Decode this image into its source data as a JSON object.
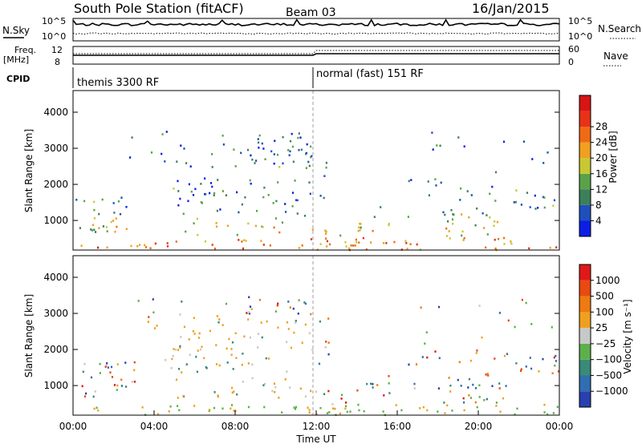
{
  "header": {
    "station": "South Pole Station (fitACF)",
    "beam": "Beam 03",
    "date": "16/Jan/2015"
  },
  "top_panels": {
    "nsky_label": "N.Sky",
    "nsearch_label": "N.Search",
    "power_ticks": [
      "10^5",
      "10^0"
    ],
    "freq_label_1": "Freq.",
    "freq_label_2": "[MHz]",
    "freq_ticks": [
      "12",
      "8"
    ],
    "nave_label": "Nave",
    "nave_ticks": [
      "60",
      "0"
    ],
    "cpid_label": "CPID",
    "cpid_modes": [
      {
        "label": "themis 3300 RF",
        "start_hour": 0
      },
      {
        "label": "normal (fast) 151 RF",
        "start_hour": 12
      }
    ]
  },
  "chart_data": [
    {
      "type": "heatmap",
      "name": "power",
      "ylabel": "Slant Range [km]",
      "xlabel": "",
      "yticks": [
        1000,
        2000,
        3000,
        4000
      ],
      "ylim": [
        180,
        4600
      ],
      "xlim": [
        0,
        24
      ],
      "colorbar": {
        "label": "Power [dB]",
        "ticks": [
          "4",
          "8",
          "12",
          "16",
          "20",
          "24",
          "28"
        ],
        "colors": [
          "#0a1ee6",
          "#1f4fbf",
          "#3d7f5a",
          "#5aa24a",
          "#c8c832",
          "#f0a020",
          "#f06a14",
          "#e83218",
          "#d81414"
        ]
      }
    },
    {
      "type": "heatmap",
      "name": "velocity",
      "ylabel": "Slant Range [km]",
      "xlabel": "Time UT",
      "yticks": [
        1000,
        2000,
        3000,
        4000
      ],
      "ylim": [
        180,
        4600
      ],
      "xlim": [
        0,
        24
      ],
      "xticks": [
        "00:00",
        "04:00",
        "08:00",
        "12:00",
        "16:00",
        "20:00",
        "00:00"
      ],
      "colorbar": {
        "label": "Velocity [m s⁻¹]",
        "ticks": [
          "1000",
          "500",
          "100",
          "25",
          "−25",
          "−100",
          "−500",
          "−1000"
        ],
        "colors": [
          "#2840b0",
          "#2f6eb0",
          "#3a8a78",
          "#5cb04a",
          "#c8c8c8",
          "#f0a020",
          "#ee7a10",
          "#e84a10",
          "#e01818"
        ]
      }
    }
  ]
}
